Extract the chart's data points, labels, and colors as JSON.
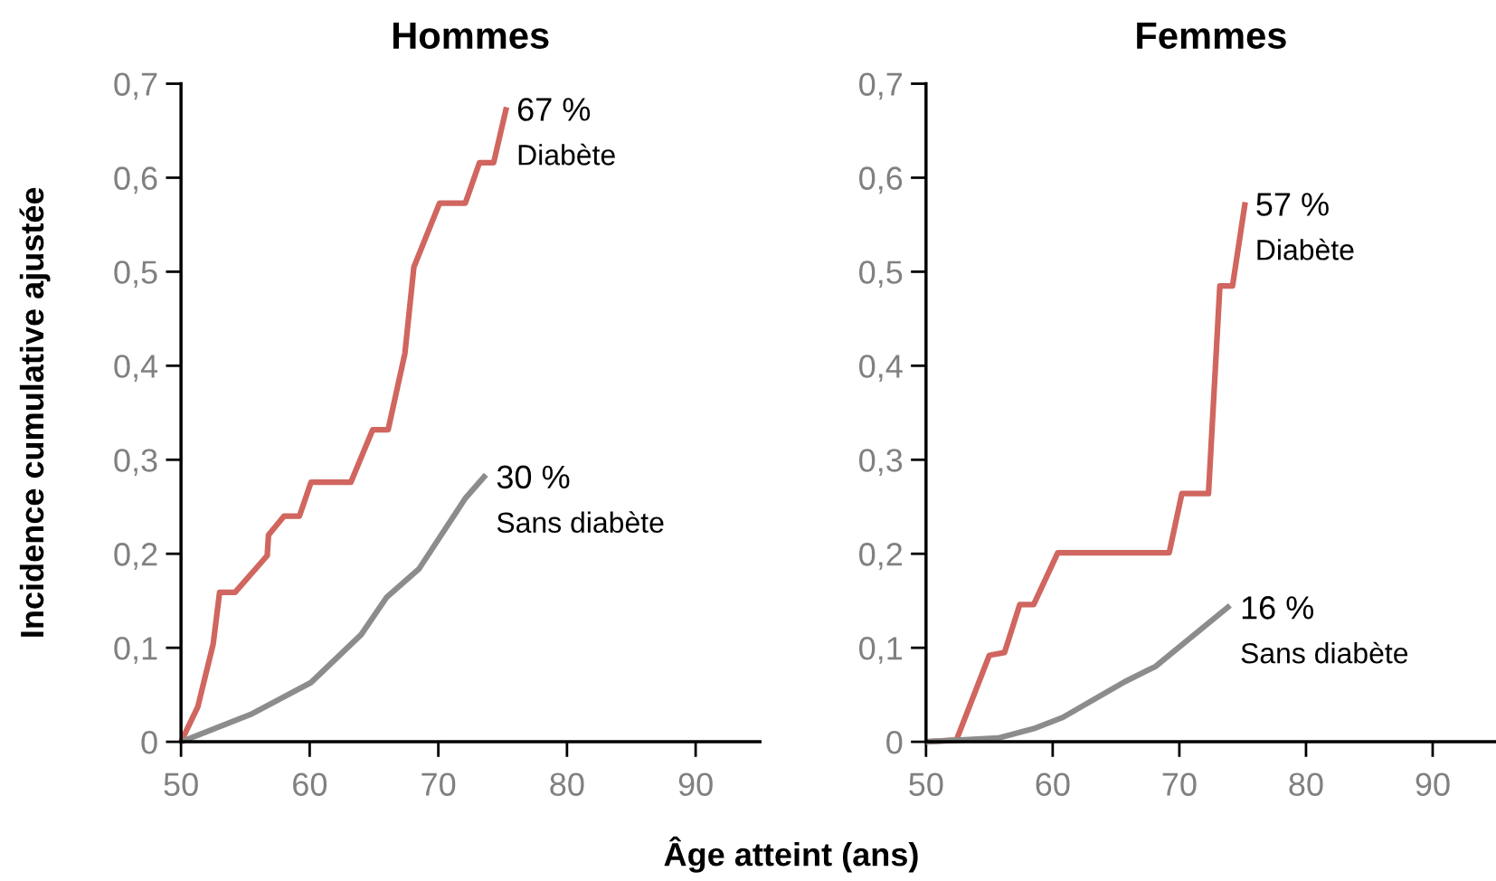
{
  "chart_data": [
    {
      "type": "line",
      "title": "Hommes",
      "xlabel": "Âge atteint (ans)",
      "ylabel": "Incidence cumulative ajustée",
      "xlim": [
        50,
        95
      ],
      "xticks": [
        50,
        60,
        70,
        80,
        90
      ],
      "ylim": [
        0,
        0.7
      ],
      "yticks": [
        {
          "value": 0,
          "label": "0"
        },
        {
          "value": 0.1,
          "label": "0,1"
        },
        {
          "value": 0.2,
          "label": "0,2"
        },
        {
          "value": 0.3,
          "label": "0,3"
        },
        {
          "value": 0.4,
          "label": "0,4"
        },
        {
          "value": 0.5,
          "label": "0,5"
        },
        {
          "value": 0.6,
          "label": "0,6"
        },
        {
          "value": 0.7,
          "label": "0,7"
        }
      ],
      "grid": false,
      "legend": false,
      "series": [
        {
          "name": "Diabète",
          "color": "#d0665f",
          "x": [
            50,
            51.3,
            52.5,
            53,
            54.2,
            56.7,
            56.8,
            58,
            59.2,
            60.1,
            63.2,
            64.9,
            66.1,
            67.4,
            68.1,
            70.1,
            72.1,
            73.2,
            74.3,
            75.3
          ],
          "values": [
            0,
            0.037,
            0.104,
            0.159,
            0.159,
            0.198,
            0.22,
            0.24,
            0.24,
            0.276,
            0.276,
            0.332,
            0.332,
            0.413,
            0.505,
            0.573,
            0.573,
            0.616,
            0.616,
            0.675
          ]
        },
        {
          "name": "Sans diabète",
          "color": "#8c8c8c",
          "x": [
            50,
            55.4,
            60.1,
            64,
            66,
            68.5,
            72.1,
            73.7
          ],
          "values": [
            0,
            0.029,
            0.063,
            0.114,
            0.154,
            0.184,
            0.259,
            0.284
          ]
        }
      ],
      "annotations": [
        {
          "text": "67 %",
          "x": 75.3,
          "y": 0.675
        },
        {
          "text": "30 %",
          "x": 73.7,
          "y": 0.284
        }
      ]
    },
    {
      "type": "line",
      "title": "Femmes",
      "xlim": [
        50,
        95
      ],
      "xticks": [
        50,
        60,
        70,
        80,
        90
      ],
      "ylim": [
        0,
        0.7
      ],
      "yticks": [
        {
          "value": 0,
          "label": "0"
        },
        {
          "value": 0.1,
          "label": "0,1"
        },
        {
          "value": 0.2,
          "label": "0,2"
        },
        {
          "value": 0.3,
          "label": "0,3"
        },
        {
          "value": 0.4,
          "label": "0,4"
        },
        {
          "value": 0.5,
          "label": "0,5"
        },
        {
          "value": 0.6,
          "label": "0,6"
        },
        {
          "value": 0.7,
          "label": "0,7"
        }
      ],
      "grid": false,
      "legend": false,
      "series": [
        {
          "name": "Diabète",
          "color": "#d0665f",
          "x": [
            50,
            52.4,
            55,
            56.2,
            57.4,
            58.5,
            60.4,
            69.2,
            70.2,
            72.3,
            73.2,
            74.2,
            75.2
          ],
          "values": [
            0,
            0.002,
            0.092,
            0.095,
            0.146,
            0.146,
            0.201,
            0.201,
            0.264,
            0.264,
            0.485,
            0.485,
            0.574
          ]
        },
        {
          "name": "Sans diabète",
          "color": "#8c8c8c",
          "x": [
            50,
            55.7,
            58.5,
            60.8,
            65.7,
            68.1,
            74
          ],
          "values": [
            0,
            0.004,
            0.014,
            0.026,
            0.064,
            0.08,
            0.145
          ]
        }
      ],
      "annotations": [
        {
          "text": "57 %",
          "x": 75.2,
          "y": 0.574
        },
        {
          "text": "16 %",
          "x": 74,
          "y": 0.145
        }
      ]
    }
  ]
}
